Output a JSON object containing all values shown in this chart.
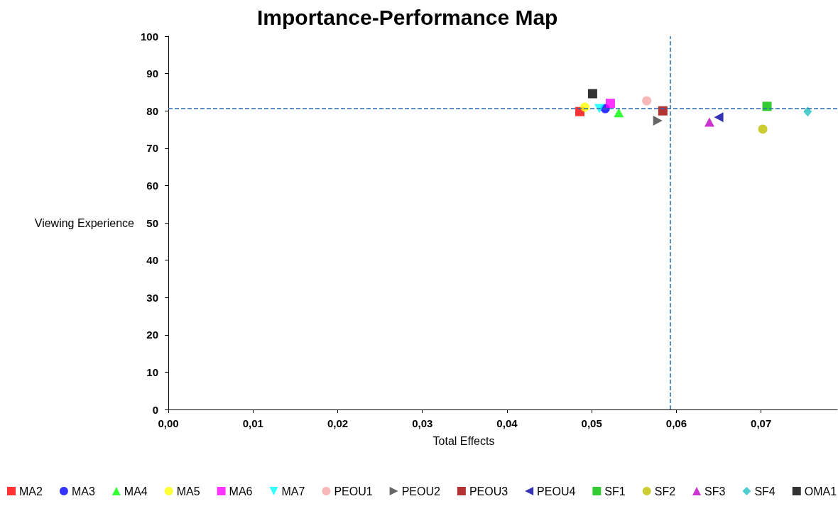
{
  "chart_data": {
    "type": "scatter",
    "title": "Importance-Performance Map",
    "xlabel": "Total Effects",
    "ylabel": "Viewing Experience",
    "xlim": [
      0,
      0.079
    ],
    "xticks": [
      {
        "value": 0,
        "label": "0,00"
      },
      {
        "value": 0.01,
        "label": "0,01"
      },
      {
        "value": 0.02,
        "label": "0,02"
      },
      {
        "value": 0.03,
        "label": "0,03"
      },
      {
        "value": 0.04,
        "label": "0,04"
      },
      {
        "value": 0.05,
        "label": "0,05"
      },
      {
        "value": 0.06,
        "label": "0,06"
      },
      {
        "value": 0.07,
        "label": "0,07"
      }
    ],
    "ylim": [
      0,
      100
    ],
    "yticks": [
      0,
      10,
      20,
      30,
      40,
      50,
      60,
      70,
      80,
      90,
      100
    ],
    "grid": false,
    "legend": "bottom",
    "ref_lines": [
      {
        "axis": "x",
        "value": 0.0593,
        "color": "#2a6cb0",
        "line_style": "dashed"
      },
      {
        "axis": "y",
        "value": 80.6,
        "color": "#2a6cb0",
        "line_style": "dashed"
      }
    ],
    "series": [
      {
        "name": "MA2",
        "color": "#ff0000",
        "marker": "square",
        "x": [
          0.0486
        ],
        "values": [
          79.8
        ]
      },
      {
        "name": "MA3",
        "color": "#0000ff",
        "marker": "circle",
        "x": [
          0.0516
        ],
        "values": [
          80.6
        ]
      },
      {
        "name": "MA4",
        "color": "#00ff00",
        "marker": "triangle",
        "x": [
          0.0532
        ],
        "values": [
          79.5
        ]
      },
      {
        "name": "MA5",
        "color": "#ffff00",
        "marker": "circle",
        "x": [
          0.0492
        ],
        "values": [
          81
        ]
      },
      {
        "name": "MA6",
        "color": "#ff00ff",
        "marker": "square",
        "x": [
          0.0522
        ],
        "values": [
          82
        ]
      },
      {
        "name": "MA7",
        "color": "#00ffff",
        "marker": "triangle-down",
        "x": [
          0.0509
        ],
        "values": [
          80.6
        ]
      },
      {
        "name": "PEOU1",
        "color": "#f4a6a6",
        "marker": "circle",
        "x": [
          0.0565
        ],
        "values": [
          82.7
        ]
      },
      {
        "name": "PEOU2",
        "color": "#404040",
        "marker": "triangle-right",
        "x": [
          0.0578
        ],
        "values": [
          77.4
        ]
      },
      {
        "name": "PEOU3",
        "color": "#a00000",
        "marker": "square",
        "x": [
          0.0584
        ],
        "values": [
          80
        ]
      },
      {
        "name": "PEOU4",
        "color": "#0000a0",
        "marker": "triangle-left",
        "x": [
          0.065
        ],
        "values": [
          78.3
        ]
      },
      {
        "name": "SF1",
        "color": "#00c000",
        "marker": "square",
        "x": [
          0.0707
        ],
        "values": [
          81.2
        ]
      },
      {
        "name": "SF2",
        "color": "#c0c000",
        "marker": "circle",
        "x": [
          0.0702
        ],
        "values": [
          75.1
        ]
      },
      {
        "name": "SF3",
        "color": "#c000c0",
        "marker": "triangle",
        "x": [
          0.0639
        ],
        "values": [
          77
        ]
      },
      {
        "name": "SF4",
        "color": "#20c0c0",
        "marker": "diamond",
        "x": [
          0.0755
        ],
        "values": [
          79.8
        ]
      },
      {
        "name": "OMA1",
        "color": "#000000",
        "marker": "square",
        "x": [
          0.0501
        ],
        "values": [
          84.6
        ]
      }
    ]
  }
}
